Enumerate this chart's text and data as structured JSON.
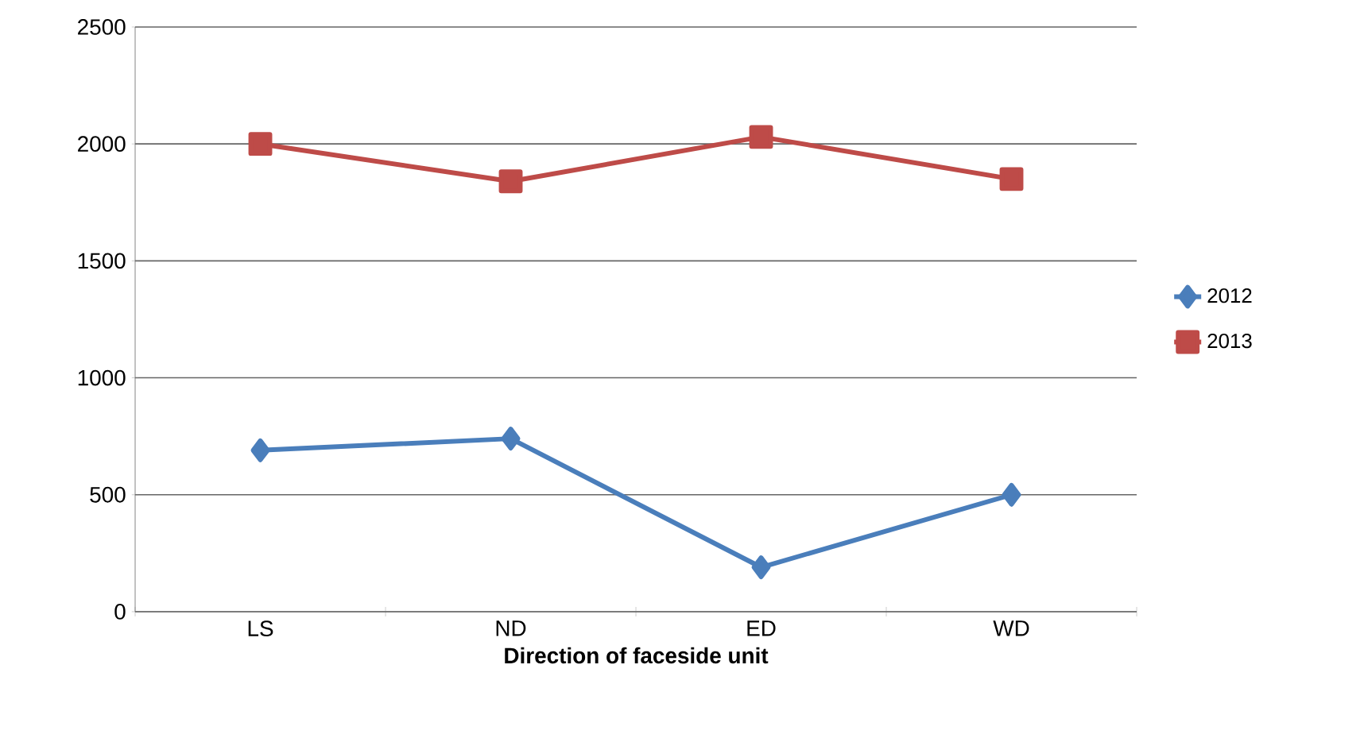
{
  "chart_data": {
    "type": "line",
    "xlabel": "Direction of faceside unit",
    "categories": [
      "LS",
      "ND",
      "ED",
      "WD"
    ],
    "series": [
      {
        "name": "2012",
        "color": "#4a7ebb",
        "marker": "diamond",
        "values": [
          690,
          740,
          190,
          500
        ]
      },
      {
        "name": "2013",
        "color": "#be4b48",
        "marker": "square",
        "values": [
          2000,
          1840,
          2030,
          1850
        ]
      }
    ],
    "ylim": [
      0,
      2500
    ],
    "yticks": [
      0,
      500,
      1000,
      1500,
      2000,
      2500
    ],
    "grid": "y",
    "legend": "right",
    "line_style": "solid"
  }
}
